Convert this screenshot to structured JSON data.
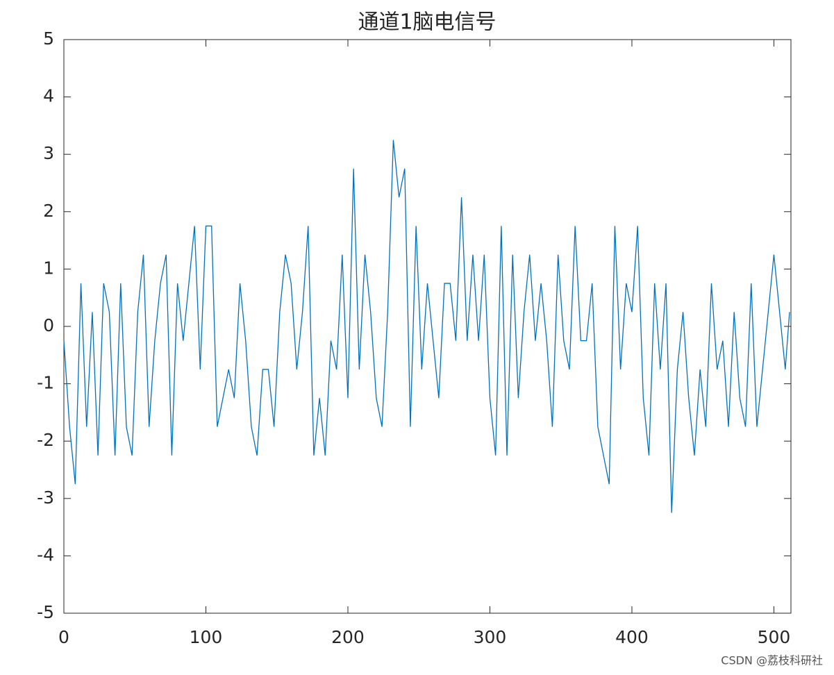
{
  "chart_data": {
    "type": "line",
    "title": "通道1脑电信号",
    "x": [
      0,
      4,
      8,
      12,
      16,
      20,
      24,
      28,
      32,
      36,
      40,
      44,
      48,
      52,
      56,
      60,
      64,
      68,
      72,
      76,
      80,
      84,
      88,
      92,
      96,
      100,
      104,
      108,
      112,
      116,
      120,
      124,
      128,
      132,
      136,
      140,
      144,
      148,
      152,
      156,
      160,
      164,
      168,
      172,
      176,
      180,
      184,
      188,
      192,
      196,
      200,
      204,
      208,
      212,
      216,
      220,
      224,
      228,
      232,
      236,
      240,
      244,
      248,
      252,
      256,
      260,
      264,
      268,
      272,
      276,
      280,
      284,
      288,
      292,
      296,
      300,
      304,
      308,
      312,
      316,
      320,
      324,
      328,
      332,
      336,
      340,
      344,
      348,
      352,
      356,
      360,
      364,
      368,
      372,
      376,
      380,
      384,
      388,
      392,
      396,
      400,
      404,
      408,
      412,
      416,
      420,
      424,
      428,
      432,
      436,
      440,
      444,
      448,
      452,
      456,
      460,
      464,
      468,
      472,
      476,
      480,
      484,
      488,
      492,
      496,
      500,
      504,
      508,
      511
    ],
    "series": [
      {
        "color": "#0072bd",
        "values": [
          -0.25,
          -1.75,
          -2.75,
          0.75,
          -1.75,
          0.25,
          -2.25,
          0.75,
          0.25,
          -2.25,
          0.75,
          -1.75,
          -2.25,
          0.25,
          1.25,
          -1.75,
          -0.25,
          0.75,
          1.25,
          -2.25,
          0.75,
          -0.25,
          0.75,
          1.75,
          -0.75,
          1.75,
          1.75,
          -1.75,
          -1.25,
          -0.75,
          -1.25,
          0.75,
          -0.25,
          -1.75,
          -2.25,
          -0.75,
          -0.75,
          -1.75,
          0.25,
          1.25,
          0.75,
          -0.75,
          0.25,
          1.75,
          -2.25,
          -1.25,
          -2.25,
          -0.25,
          -0.75,
          1.25,
          -1.25,
          2.75,
          -0.75,
          1.25,
          0.25,
          -1.25,
          -1.75,
          0.25,
          3.25,
          2.25,
          2.75,
          -1.75,
          1.75,
          -0.75,
          0.75,
          -0.25,
          -1.25,
          0.75,
          0.75,
          -0.25,
          2.25,
          -0.25,
          1.25,
          -0.25,
          1.25,
          -1.25,
          -2.25,
          1.75,
          -2.25,
          1.25,
          -1.25,
          0.25,
          1.25,
          -0.25,
          0.75,
          -0.25,
          -1.75,
          1.25,
          -0.25,
          -0.75,
          1.75,
          -0.25,
          -0.25,
          0.75,
          -1.75,
          -2.25,
          -2.75,
          1.75,
          -0.75,
          0.75,
          0.25,
          1.75,
          -1.25,
          -2.25,
          0.75,
          -0.75,
          0.75,
          -3.25,
          -0.75,
          0.25,
          -1.25,
          -2.25,
          -0.75,
          -1.75,
          0.75,
          -0.75,
          -0.25,
          -1.75,
          0.25,
          -1.25,
          -1.75,
          0.75,
          -1.75,
          -0.75,
          0.25,
          1.25,
          0.25,
          -0.75,
          0.25
        ]
      }
    ],
    "xlim": [
      0,
      512
    ],
    "xticks": [
      0,
      100,
      200,
      300,
      400,
      500
    ],
    "ylim": [
      -5,
      5
    ],
    "yticks": [
      -5,
      -4,
      -3,
      -2,
      -1,
      0,
      1,
      2,
      3,
      4,
      5
    ],
    "watermark": "CSDN @荔枝科研社"
  }
}
